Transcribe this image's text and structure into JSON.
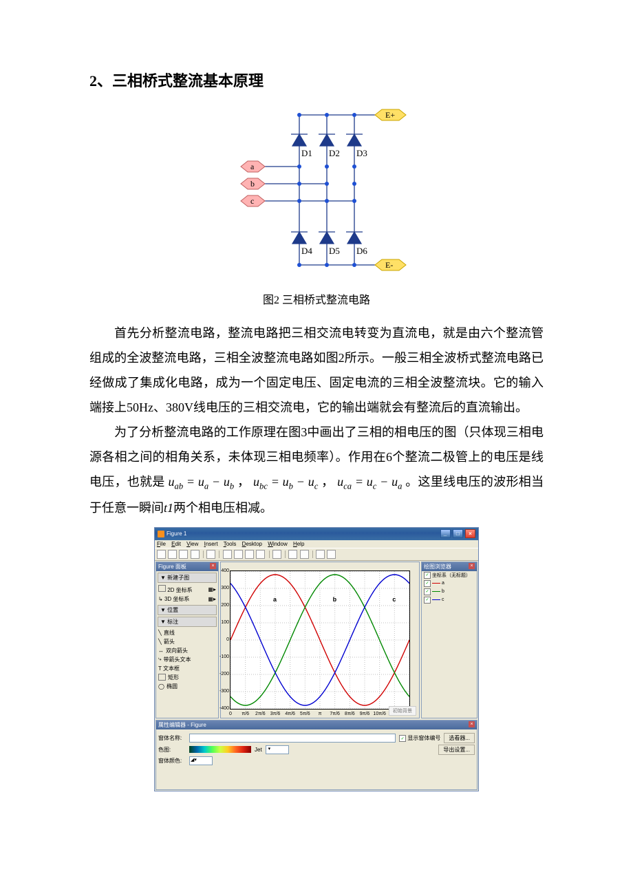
{
  "heading": "2、三相桥式整流基本原理",
  "circuit": {
    "terminals": {
      "eplus": "E+",
      "eminus": "E-"
    },
    "phases": [
      "a",
      "b",
      "c"
    ],
    "diodes": [
      "D1",
      "D2",
      "D3",
      "D4",
      "D5",
      "D6"
    ],
    "caption": "图2   三相桥式整流电路",
    "colors": {
      "wire": "#1e3a8a",
      "node": "#1e50d4",
      "diode_fill": "#1e3a8a",
      "term_fill": "#ffe066",
      "term_stroke": "#c9a400",
      "phase_fill": "#ffb3b3",
      "phase_stroke": "#c06060"
    }
  },
  "para1_a": "首先分析整流电路，整流电路把三相交流电转变为直流电，就是由六个整流管组成的全波整流电路，三相全波整流电路如图2所示。一般三相全波桥式整流电路已经做成了集成化电路，成为一个固定电压、固定电流的三相全波整流块。它的输入端接上50Hz、380V线电压的三相交流电，它的输出端就会有整流后的直流输出。",
  "para2_a": "为了分析整流电路的工作原理在图3中画出了三相的相电压的图（只体现三相电源各相之间的相角关系，未体现三相电频率）。作用在6个整流二极管上的电压是线电压，也就是",
  "eq": {
    "uab": "u",
    "uab_s": "ab",
    "eq": " = ",
    "ua": "u",
    "ua_s": "a",
    "minus": " − ",
    "ub": "u",
    "ub_s": "b",
    "sep": "， ",
    "ubc": "u",
    "ubc_s": "bc",
    "uc": "u",
    "uc_s": "c",
    "uca": "u",
    "uca_s": "ca"
  },
  "para2_b": "。这里线电压的波形相当于任意一瞬间",
  "t1": "t1",
  "para2_c": "两个相电压相减。",
  "matlab": {
    "title": "Figure 1",
    "menu": [
      "File",
      "Edit",
      "View",
      "Insert",
      "Tools",
      "Desktop",
      "Window",
      "Help"
    ],
    "fig_panel": {
      "title": "Figure 面板",
      "sec1": "▼ 新建子图",
      "axes2d": "2D 坐标系",
      "axes3d": "3D 坐标系",
      "sec2": "▼ 位置",
      "sec3": "▼ 标注",
      "items": [
        "直线",
        "箭头",
        "双向箭头",
        "带箭头文本",
        "T 文本框",
        "矩形",
        "椭圆"
      ]
    },
    "plot": {
      "yticks": [
        "400",
        "300",
        "200",
        "100",
        "0",
        "-100",
        "-200",
        "-300",
        "-400"
      ],
      "xticks": [
        "0",
        "π/6",
        "2π/6",
        "3π/6",
        "4π/6",
        "5π/6",
        "π",
        "7π/6",
        "8π/6",
        "9π/6",
        "10π/6",
        "11π/6",
        "2π"
      ],
      "labels": {
        "a": "a",
        "b": "b",
        "c": "c"
      },
      "colors": {
        "a": "#d00000",
        "b": "#008800",
        "c": "#0000d0",
        "grid": "#bfbfbf",
        "axis": "#000000"
      },
      "amp": 380,
      "ylim": [
        -400,
        400
      ],
      "addbtn": "初始背景"
    },
    "browser": {
      "title": "绘图浏览器",
      "header": "坐标系（无标题）",
      "items": [
        {
          "label": "a",
          "color": "#d00000"
        },
        {
          "label": "b",
          "color": "#008800"
        },
        {
          "label": "c",
          "color": "#0000d0"
        }
      ]
    },
    "prop": {
      "title": "属性编辑器 - Figure",
      "name_label": "窗体名称:",
      "colormap_label": "色图:",
      "colormap_name": "Jet",
      "bodycolor_label": "窗体颜色:",
      "show_num": "显示窗体编号",
      "btn1": "选看器...",
      "btn2": "导出设置..."
    }
  }
}
